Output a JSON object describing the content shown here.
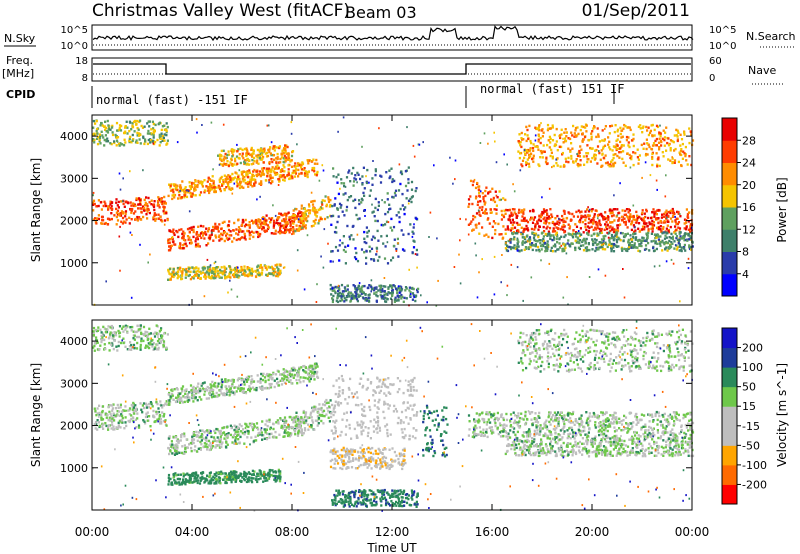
{
  "header": {
    "station": "Christmas Valley West (fitACF)",
    "beam": "Beam 03",
    "date": "01/Sep/2011"
  },
  "strip_labels": {
    "nsky": "N.Sky",
    "nsearch": "N.Search",
    "freq_line1": "Freq.",
    "freq_line2": "[MHz]",
    "nave": "Nave",
    "cpid": "CPID",
    "nsky_ticks": [
      "10^5",
      "10^0"
    ],
    "nsearch_ticks": [
      "10^5",
      "10^0"
    ],
    "freq_ticks": [
      "18",
      "8"
    ],
    "nave_ticks": [
      "60",
      "0"
    ]
  },
  "cpid_segments": [
    {
      "label": "normal (fast) -151 IF",
      "start_hour": 0
    },
    {
      "label": "normal (fast) 151 IF",
      "start_hour": 15
    }
  ],
  "colors": {
    "power": [
      "#0000ff",
      "#2a3caa",
      "#3e7f6a",
      "#5fa05f",
      "#f5c400",
      "#ff8c00",
      "#ff3c00",
      "#e80000"
    ],
    "velocity": [
      "#ff0000",
      "#ff6a00",
      "#ffa500",
      "#bebebe",
      "#bebebe",
      "#6ec84a",
      "#2a8a5a",
      "#1e3c9a",
      "#1414c8"
    ]
  },
  "chart_data": [
    {
      "type": "heatmap",
      "name": "power",
      "ylabel": "Slant Range [km]",
      "yticks": [
        1000,
        2000,
        3000,
        4000
      ],
      "ylim": [
        0,
        4500
      ],
      "xlim_hours": [
        0,
        24
      ],
      "colorbar_label": "Power [dB]",
      "colorbar_ticks": [
        "28",
        "24",
        "20",
        "16",
        "12",
        "8",
        "4"
      ],
      "bands": [
        {
          "t0": 0.0,
          "t1": 3.0,
          "r0": 1900,
          "r1": 2500,
          "v": 26,
          "slope": 40
        },
        {
          "t0": 3.0,
          "t1": 8.5,
          "r0": 1300,
          "r1": 1800,
          "v": 25,
          "slope": 90
        },
        {
          "t0": 3.0,
          "t1": 9.0,
          "r0": 2500,
          "r1": 2900,
          "v": 21,
          "slope": 100
        },
        {
          "t0": 5.0,
          "t1": 8.0,
          "r0": 3300,
          "r1": 3700,
          "v": 20,
          "slope": 40
        },
        {
          "t0": 3.0,
          "t1": 7.5,
          "r0": 620,
          "r1": 900,
          "v": 17,
          "slope": 20
        },
        {
          "t0": 8.0,
          "t1": 9.5,
          "r0": 1700,
          "r1": 2300,
          "v": 20,
          "slope": 250
        },
        {
          "t0": 9.5,
          "t1": 13.0,
          "r0": 1000,
          "r1": 3300,
          "v": 8,
          "slope": 0
        },
        {
          "t0": 9.5,
          "t1": 13.0,
          "r0": 100,
          "r1": 500,
          "v": 10,
          "slope": 0
        },
        {
          "t0": 15.0,
          "t1": 16.5,
          "r0": 1800,
          "r1": 3000,
          "v": 24,
          "slope": -200
        },
        {
          "t0": 16.5,
          "t1": 24.0,
          "r0": 1750,
          "r1": 2300,
          "v": 27,
          "slope": 0
        },
        {
          "t0": 16.5,
          "t1": 24.0,
          "r0": 1300,
          "r1": 1750,
          "v": 12,
          "slope": 0
        },
        {
          "t0": 17.0,
          "t1": 24.0,
          "r0": 3300,
          "r1": 4300,
          "v": 21,
          "slope": 0
        },
        {
          "t0": 0.0,
          "t1": 3.0,
          "r0": 3800,
          "r1": 4400,
          "v": 15,
          "slope": 0
        }
      ]
    },
    {
      "type": "heatmap",
      "name": "velocity",
      "ylabel": "Slant Range [km]",
      "yticks": [
        1000,
        2000,
        3000,
        4000
      ],
      "ylim": [
        0,
        4500
      ],
      "xlim_hours": [
        0,
        24
      ],
      "xlabel": "Time UT",
      "xticks": [
        "00:00",
        "04:00",
        "08:00",
        "12:00",
        "16:00",
        "20:00",
        "00:00"
      ],
      "colorbar_label": "Velocity [m s^-1]",
      "colorbar_ticks": [
        "200",
        "100",
        "50",
        "15",
        "-15",
        "-50",
        "-100",
        "-200"
      ],
      "bands": [
        {
          "t0": 0.0,
          "t1": 3.0,
          "r0": 1900,
          "r1": 2500,
          "v": 0,
          "slope": 40
        },
        {
          "t0": 3.0,
          "t1": 8.5,
          "r0": 1300,
          "r1": 1800,
          "v": 0,
          "slope": 90
        },
        {
          "t0": 3.0,
          "t1": 9.0,
          "r0": 2500,
          "r1": 2900,
          "v": 0,
          "slope": 100
        },
        {
          "t0": 3.0,
          "t1": 7.5,
          "r0": 620,
          "r1": 900,
          "v": 30,
          "slope": 20
        },
        {
          "t0": 8.0,
          "t1": 9.5,
          "r0": 1700,
          "r1": 2300,
          "v": 0,
          "slope": 250
        },
        {
          "t0": 9.5,
          "t1": 12.5,
          "r0": 1000,
          "r1": 1500,
          "v": -40,
          "slope": 0
        },
        {
          "t0": 9.5,
          "t1": 13.0,
          "r0": 1700,
          "r1": 3200,
          "v": -30,
          "slope": 0
        },
        {
          "t0": 9.5,
          "t1": 13.0,
          "r0": 100,
          "r1": 500,
          "v": 40,
          "slope": 0
        },
        {
          "t0": 13.2,
          "t1": 14.2,
          "r0": 1300,
          "r1": 2500,
          "v": 40,
          "slope": 0
        },
        {
          "t0": 15.0,
          "t1": 24.0,
          "r0": 1750,
          "r1": 2350,
          "v": 0,
          "slope": 0
        },
        {
          "t0": 16.5,
          "t1": 24.0,
          "r0": 1300,
          "r1": 1750,
          "v": 0,
          "slope": 0
        },
        {
          "t0": 17.0,
          "t1": 24.0,
          "r0": 3300,
          "r1": 4300,
          "v": 0,
          "slope": 0
        },
        {
          "t0": 0.0,
          "t1": 3.0,
          "r0": 3800,
          "r1": 4400,
          "v": 0,
          "slope": 0
        }
      ]
    }
  ]
}
